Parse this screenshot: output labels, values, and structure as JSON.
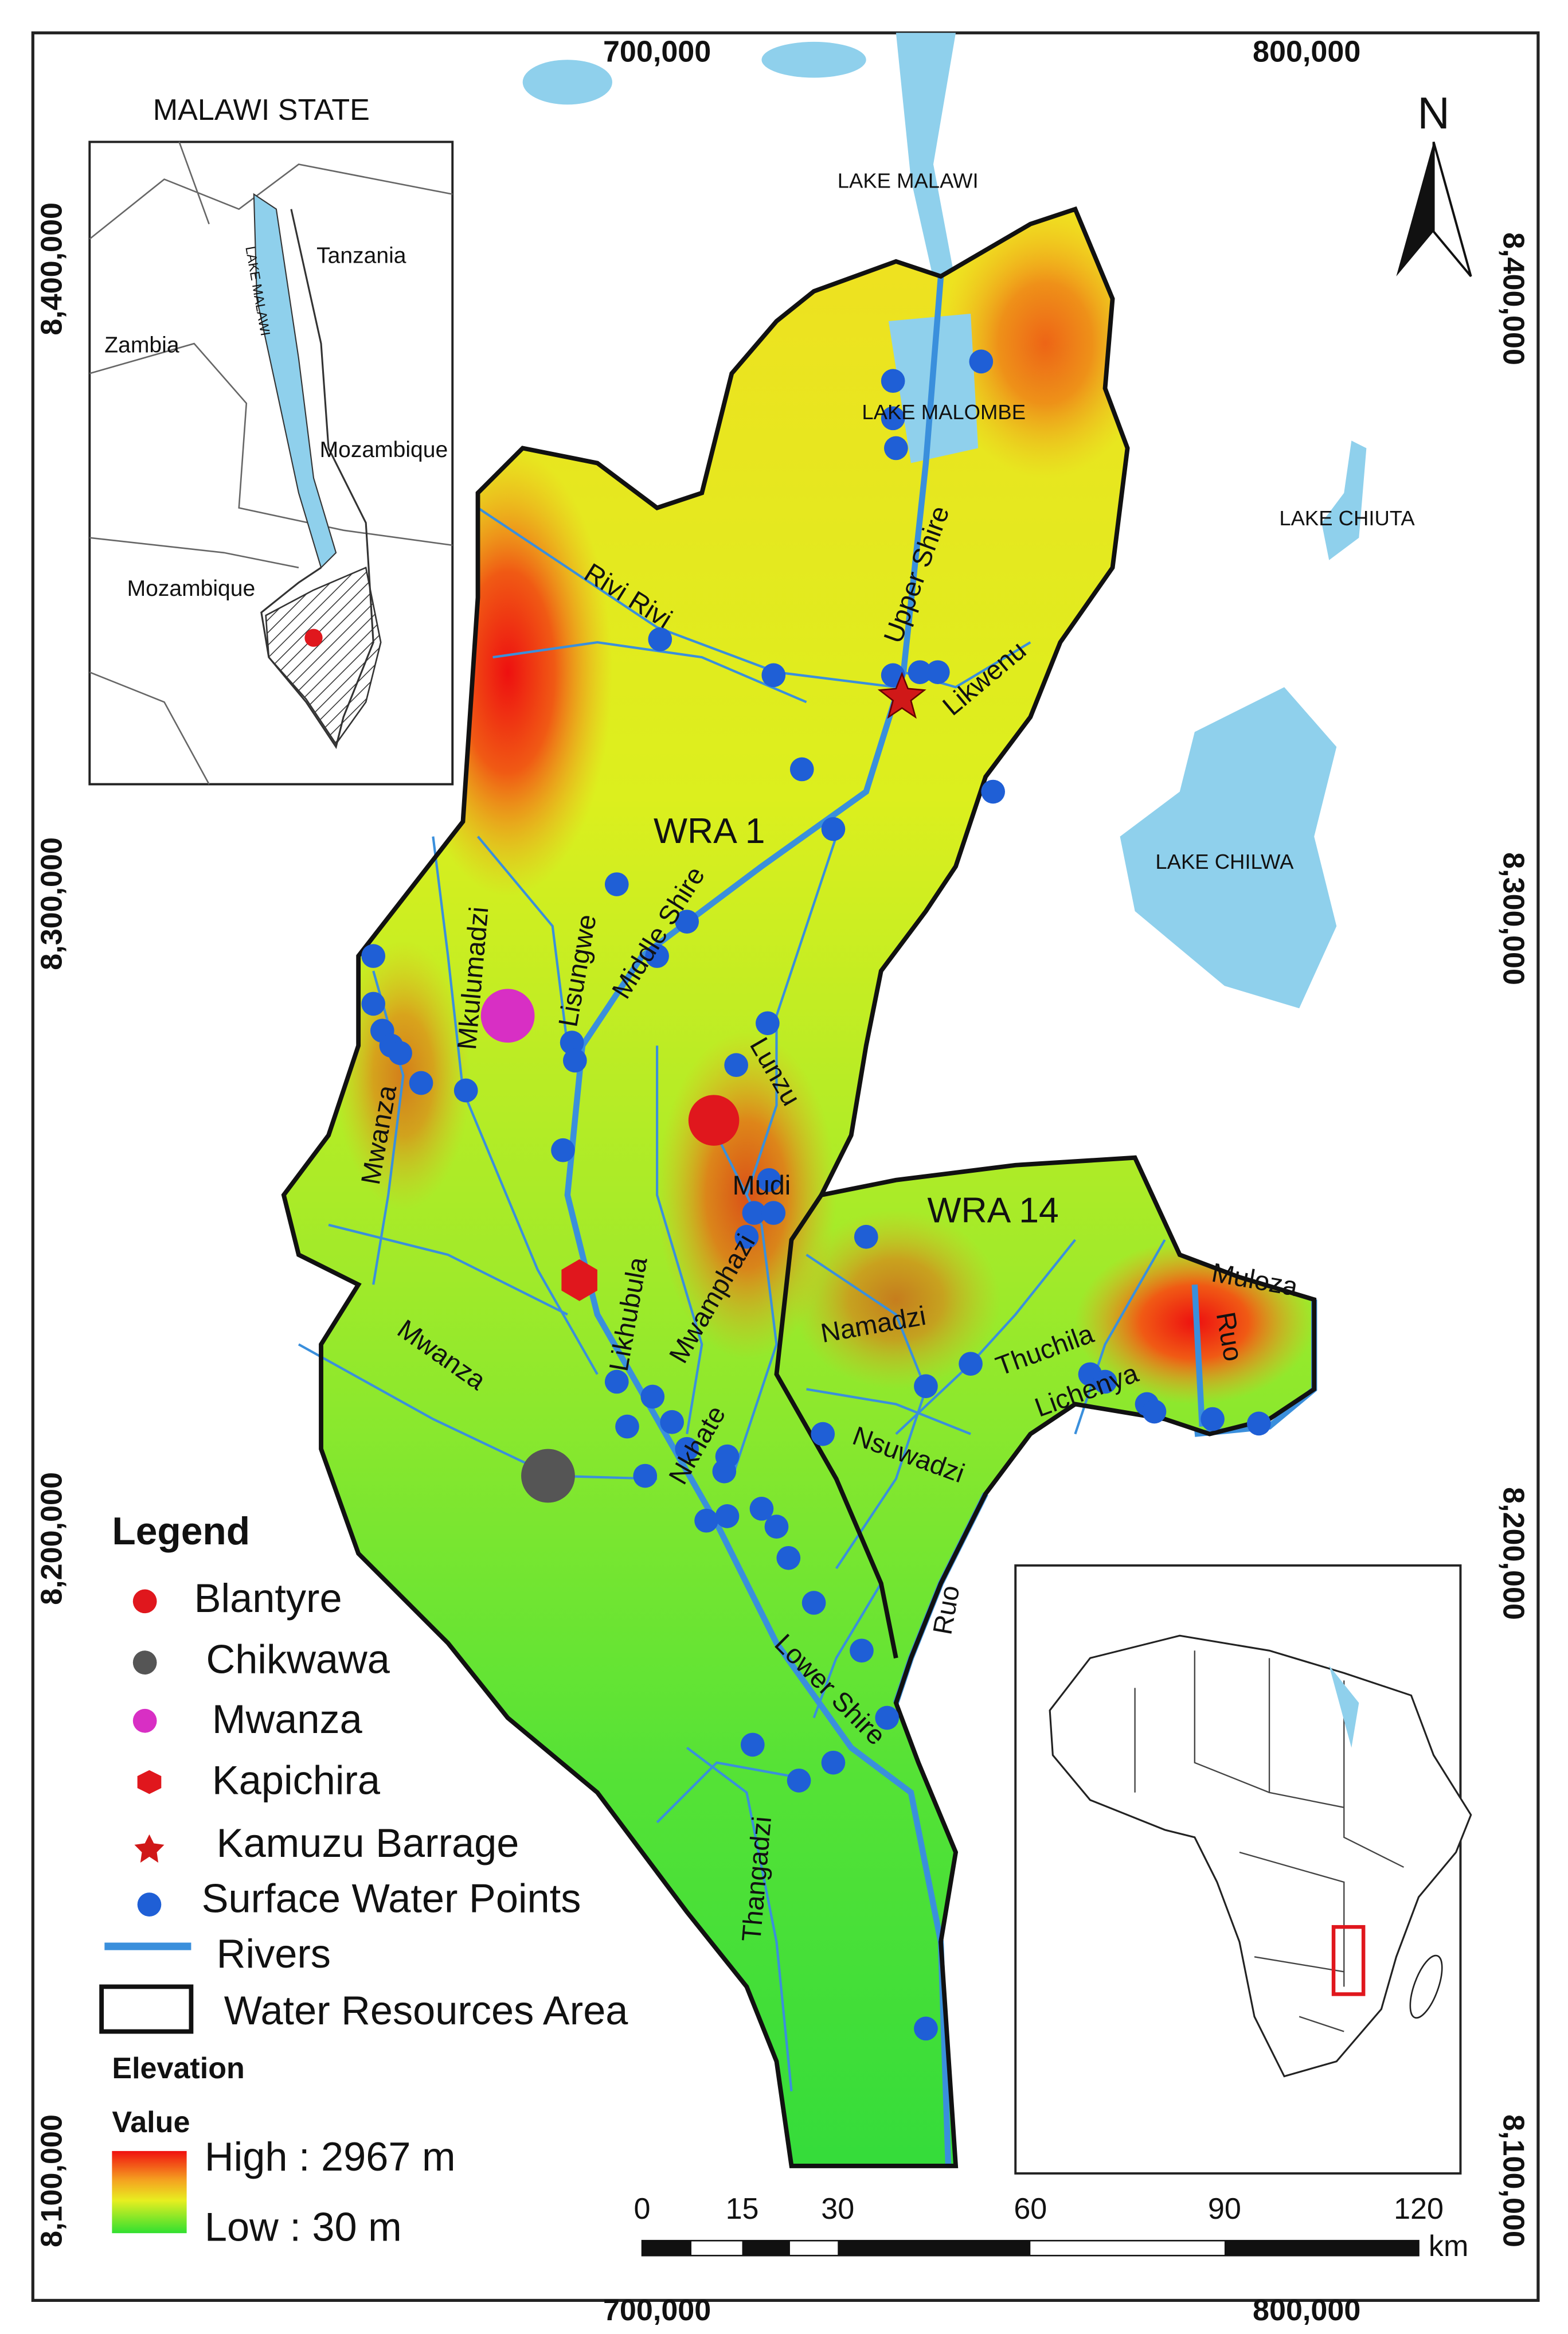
{
  "map": {
    "coordinates": {
      "top": [
        "700,000",
        "800,000"
      ],
      "bottom": [
        "700,000",
        "800,000"
      ],
      "left": [
        "8,400,000",
        "8,300,000",
        "8,200,000",
        "8,100,000"
      ],
      "right": [
        "8,400,000",
        "8,300,000",
        "8,200,000",
        "8,100,000"
      ]
    },
    "north": "N",
    "water_bodies": [
      "LAKE MALAWI",
      "LAKE MALOMBE",
      "LAKE CHIUTA",
      "LAKE CHILWA"
    ],
    "areas": [
      "WRA 1",
      "WRA 14"
    ],
    "rivers": [
      "Rivi Rivi",
      "Upper Shire",
      "Likwenu",
      "Middle Shire",
      "Lisungwe",
      "Mkulumadzi",
      "Lunzu",
      "Mudi",
      "Mwanza",
      "Likhubula",
      "Mwamphazi",
      "Mwanza",
      "Nkhate",
      "Lower Shire",
      "Thangadzi",
      "Ruo",
      "Nsuwadzi",
      "Namadzi",
      "Thuchila",
      "Lichenya",
      "Muloza",
      "Ruo"
    ],
    "inset_malawi": {
      "title": "MALAWI STATE",
      "labels": [
        "Tanzania",
        "Zambia",
        "LAKE MALAWI",
        "Mozambique",
        "Mozambique"
      ]
    },
    "legend": {
      "title": "Legend",
      "items": [
        "Blantyre",
        "Chikwawa",
        "Mwanza",
        "Kapichira",
        "Kamuzu Barrage",
        "Surface Water Points",
        "Rivers",
        "Water Resources Area"
      ],
      "elevation": {
        "title": "Elevation",
        "subtitle": "Value",
        "high": "High : 2967 m",
        "low": "Low : 30 m"
      }
    },
    "scale_bar": {
      "ticks": [
        0,
        15,
        30,
        60,
        90,
        120
      ],
      "unit": "km"
    }
  }
}
